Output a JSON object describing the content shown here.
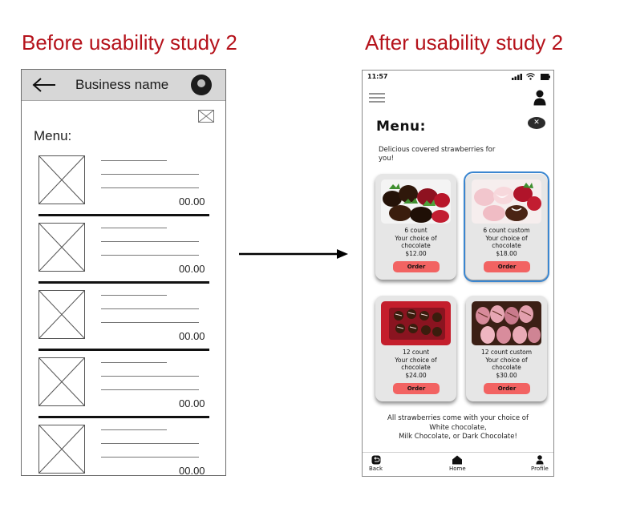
{
  "headings": {
    "before": "Before usability study 2",
    "after": "After usability study 2"
  },
  "wireframe": {
    "business_name": "Business name",
    "menu_label": "Menu:",
    "items": [
      {
        "price": "00.00"
      },
      {
        "price": "00.00"
      },
      {
        "price": "00.00"
      },
      {
        "price": "00.00"
      },
      {
        "price": "00.00"
      }
    ]
  },
  "phone": {
    "status_time": "11:57",
    "title": "Menu:",
    "intro": "Delicious covered strawberries for you!",
    "cards": [
      {
        "count": "6 count",
        "line2": "Your choice of",
        "line3": "chocolate",
        "price": "$12.00",
        "button": "Order",
        "selected": false
      },
      {
        "count": "6 count custom",
        "line2": "Your choice of",
        "line3": "chocolate",
        "price": "$18.00",
        "button": "Order",
        "selected": true
      },
      {
        "count": "12 count",
        "line2": "Your choice of",
        "line3": "chocolate",
        "price": "$24.00",
        "button": "Order",
        "selected": false
      },
      {
        "count": "12 count custom",
        "line2": "Your choice of",
        "line3": "chocolate",
        "price": "$30.00",
        "button": "Order",
        "selected": false
      }
    ],
    "footer": {
      "line1": "All strawberries come with your choice of",
      "line2": "White chocolate,",
      "line3": "Milk Chocolate, or Dark Chocolate!"
    },
    "nav": {
      "back": "Back",
      "home": "Home",
      "profile": "Profile"
    }
  },
  "colors": {
    "heading": "#b5121b",
    "order_button": "#f26362",
    "selected_outline": "#3a86d0",
    "card_bg": "#e6e6e6"
  }
}
